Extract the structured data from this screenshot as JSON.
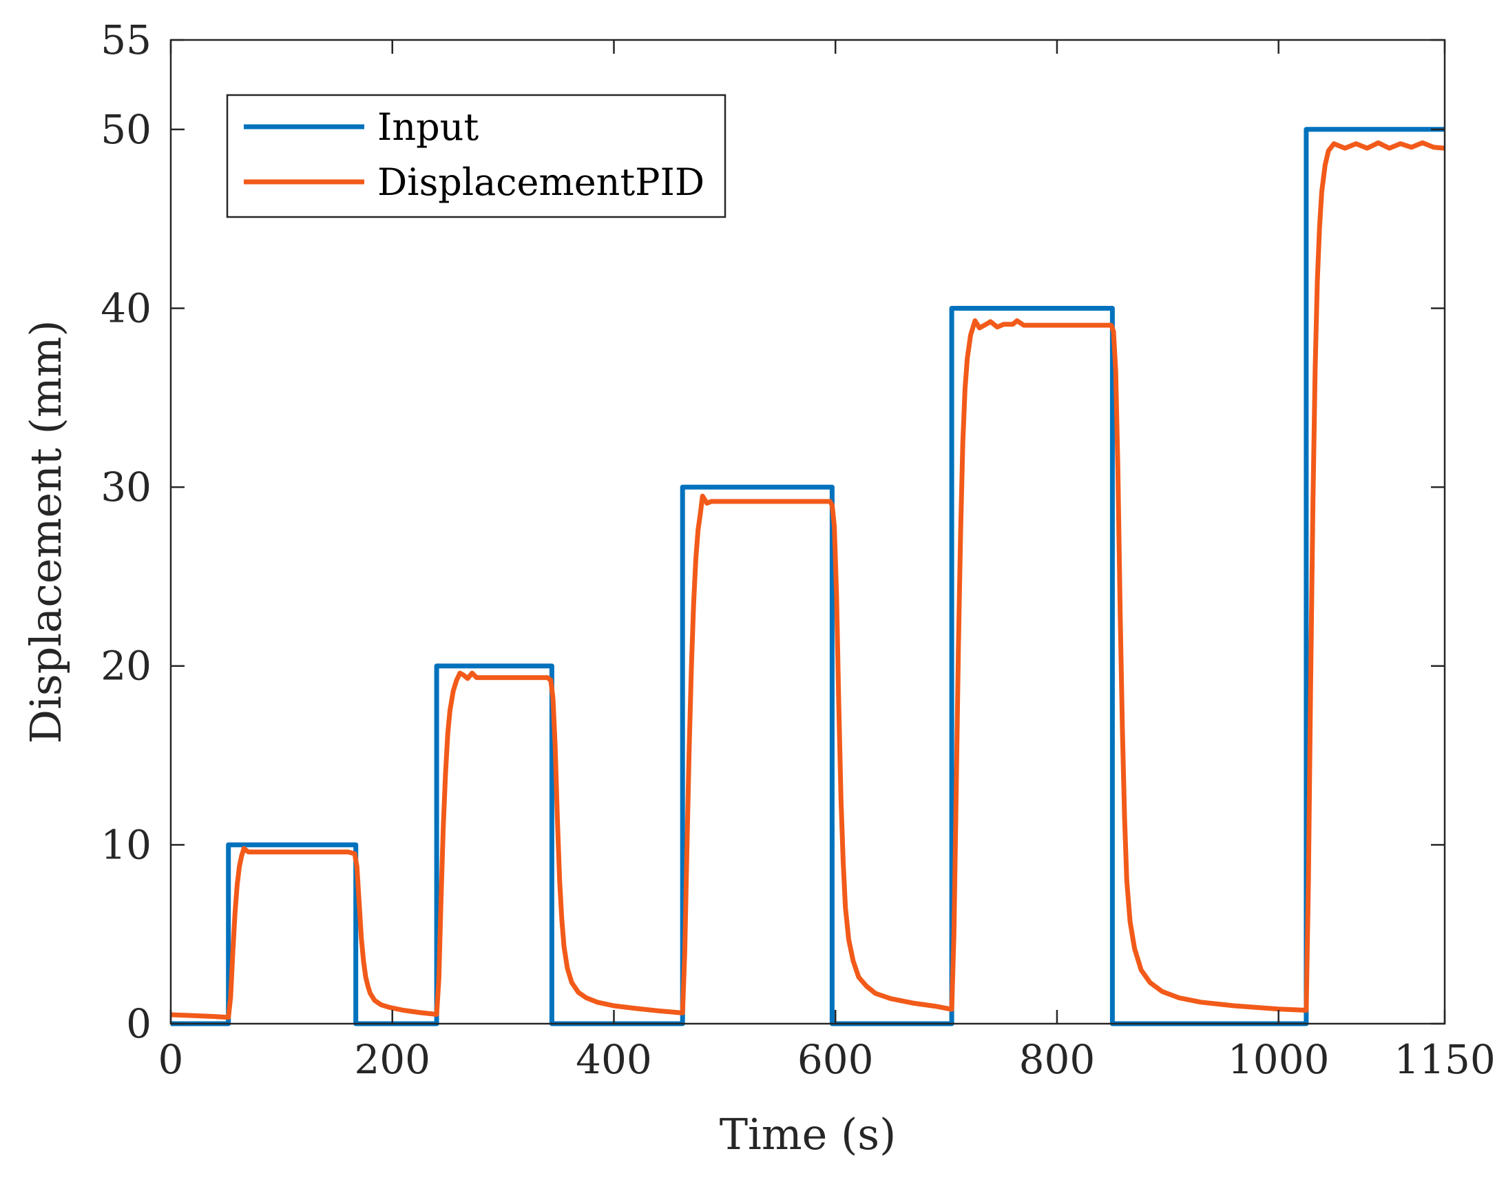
{
  "chart_data": {
    "type": "line",
    "xlabel": "Time (s)",
    "ylabel": "Displacement (mm)",
    "xlim": [
      0,
      1150
    ],
    "ylim": [
      0,
      55
    ],
    "xticks": [
      0,
      200,
      400,
      600,
      800,
      1000,
      1150
    ],
    "yticks": [
      0,
      10,
      20,
      30,
      40,
      50,
      55
    ],
    "xtick_labels": [
      "0",
      "200",
      "400",
      "600",
      "800",
      "1000",
      "1150"
    ],
    "ytick_labels": [
      "0",
      "10",
      "20",
      "30",
      "40",
      "50",
      "55"
    ],
    "legend_position": "top-left",
    "series": [
      {
        "name": "Input",
        "color": "#0072BD",
        "x": [
          0,
          52,
          52,
          167,
          167,
          240,
          240,
          344,
          344,
          462,
          462,
          597,
          597,
          705,
          705,
          850,
          850,
          1025,
          1025,
          1150
        ],
        "y": [
          0,
          0,
          10,
          10,
          0,
          0,
          20,
          20,
          0,
          0,
          30,
          30,
          0,
          0,
          40,
          40,
          0,
          0,
          50,
          50
        ]
      },
      {
        "name": "DisplacementPID",
        "color": "#F25A1A",
        "x": [
          0,
          20,
          40,
          52,
          54,
          56,
          58,
          60,
          62,
          64,
          66,
          70,
          75,
          80,
          100,
          130,
          160,
          166,
          168,
          170,
          172,
          174,
          176,
          178,
          180,
          184,
          190,
          198,
          210,
          225,
          240,
          242,
          244,
          246,
          248,
          250,
          252,
          255,
          258,
          261,
          264,
          268,
          272,
          276,
          280,
          290,
          310,
          340,
          343,
          345,
          347,
          349,
          351,
          353,
          355,
          358,
          362,
          368,
          375,
          385,
          400,
          420,
          440,
          462,
          464,
          466,
          468,
          470,
          472,
          474,
          476,
          478,
          480,
          484,
          488,
          492,
          496,
          500,
          520,
          560,
          595,
          597,
          599,
          601,
          603,
          605,
          607,
          609,
          612,
          616,
          621,
          628,
          636,
          650,
          670,
          690,
          705,
          707,
          709,
          711,
          713,
          715,
          717,
          719,
          722,
          726,
          730,
          736,
          740,
          746,
          752,
          760,
          764,
          770,
          790,
          820,
          849,
          851,
          853,
          855,
          857,
          859,
          861,
          863,
          866,
          870,
          876,
          884,
          895,
          910,
          930,
          960,
          1000,
          1025,
          1027,
          1029,
          1031,
          1033,
          1035,
          1037,
          1039,
          1042,
          1045,
          1050,
          1060,
          1070,
          1080,
          1090,
          1100,
          1110,
          1120,
          1130,
          1140,
          1150
        ],
        "y": [
          0.5,
          0.45,
          0.4,
          0.35,
          1.5,
          4.0,
          6.2,
          7.8,
          8.8,
          9.4,
          9.8,
          9.6,
          9.6,
          9.6,
          9.6,
          9.6,
          9.6,
          9.5,
          8.8,
          6.8,
          4.8,
          3.5,
          2.6,
          2.1,
          1.7,
          1.3,
          1.05,
          0.9,
          0.75,
          0.62,
          0.52,
          2.5,
          7.0,
          11.0,
          14.0,
          16.2,
          17.5,
          18.6,
          19.2,
          19.6,
          19.5,
          19.3,
          19.6,
          19.35,
          19.35,
          19.35,
          19.35,
          19.35,
          19.2,
          18.2,
          15.5,
          11.5,
          8.0,
          5.8,
          4.3,
          3.1,
          2.3,
          1.75,
          1.45,
          1.2,
          1.0,
          0.85,
          0.72,
          0.6,
          4.0,
          10.0,
          15.5,
          20.0,
          23.5,
          26.0,
          27.6,
          28.5,
          29.5,
          29.1,
          29.2,
          29.2,
          29.2,
          29.2,
          29.2,
          29.2,
          29.2,
          29.0,
          27.8,
          24.0,
          18.0,
          12.5,
          9.0,
          6.5,
          4.7,
          3.5,
          2.6,
          2.1,
          1.7,
          1.4,
          1.15,
          0.98,
          0.8,
          5.0,
          13.0,
          21.0,
          27.5,
          32.5,
          35.5,
          37.2,
          38.5,
          39.3,
          38.9,
          39.1,
          39.25,
          38.95,
          39.1,
          39.1,
          39.3,
          39.05,
          39.05,
          39.05,
          39.05,
          38.7,
          36.5,
          31.0,
          23.0,
          16.5,
          11.5,
          8.0,
          5.7,
          4.2,
          3.0,
          2.3,
          1.8,
          1.45,
          1.2,
          1.0,
          0.82,
          0.75,
          8.0,
          19.0,
          29.0,
          36.5,
          41.5,
          44.5,
          46.5,
          48.0,
          48.8,
          49.2,
          48.95,
          49.2,
          48.95,
          49.25,
          48.95,
          49.2,
          49.0,
          49.25,
          49.0,
          48.95
        ]
      }
    ]
  }
}
